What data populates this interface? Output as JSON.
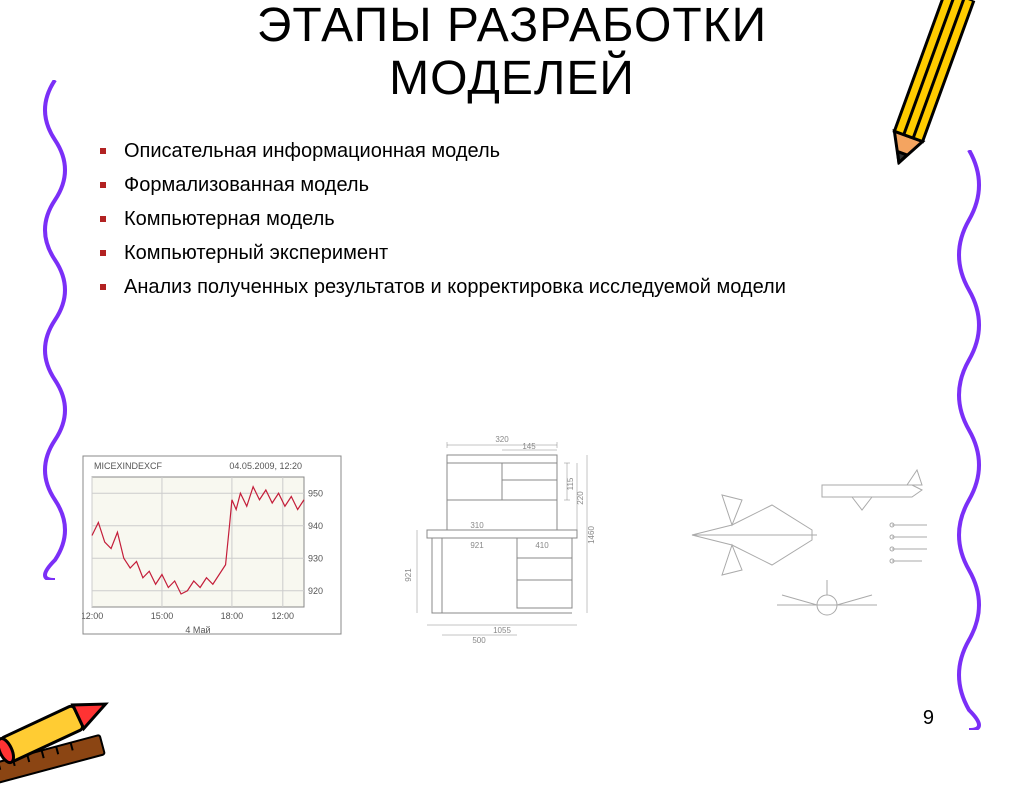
{
  "title_line1": "ЭТАПЫ РАЗРАБОТКИ",
  "title_line2": "МОДЕЛЕЙ",
  "bullets": [
    "Описательная информационная модель",
    "Формализованная модель",
    "Компьютерная модель",
    "Компьютерный эксперимент",
    "Анализ полученных результатов и корректировка исследуемой модели"
  ],
  "page_number": "9",
  "chart": {
    "type": "line",
    "title_left": "MICEXINDEXCF",
    "title_right": "04.05.2009, 12:20",
    "x_labels": [
      "12:00",
      "15:00",
      "18:00",
      "12:00"
    ],
    "x_axis_label": "4 Май",
    "y_ticks": [
      920,
      930,
      940,
      950
    ],
    "ylim": [
      915,
      955
    ],
    "series_color": "#c41e3a",
    "border_color": "#888888",
    "grid_color": "#cccccc",
    "background_color": "#f8f8f0",
    "text_color": "#555555",
    "label_fontsize": 9,
    "points": [
      [
        0,
        937
      ],
      [
        3,
        941
      ],
      [
        6,
        935
      ],
      [
        9,
        933
      ],
      [
        12,
        938
      ],
      [
        15,
        930
      ],
      [
        18,
        927
      ],
      [
        21,
        929
      ],
      [
        24,
        924
      ],
      [
        27,
        926
      ],
      [
        30,
        922
      ],
      [
        33,
        925
      ],
      [
        36,
        921
      ],
      [
        39,
        923
      ],
      [
        42,
        919
      ],
      [
        45,
        920
      ],
      [
        48,
        923
      ],
      [
        51,
        921
      ],
      [
        54,
        924
      ],
      [
        57,
        922
      ],
      [
        60,
        925
      ],
      [
        63,
        928
      ],
      [
        65,
        941
      ],
      [
        66,
        948
      ],
      [
        68,
        945
      ],
      [
        70,
        950
      ],
      [
        73,
        946
      ],
      [
        76,
        952
      ],
      [
        79,
        948
      ],
      [
        82,
        951
      ],
      [
        85,
        947
      ],
      [
        88,
        950
      ],
      [
        91,
        946
      ],
      [
        94,
        949
      ],
      [
        97,
        945
      ],
      [
        100,
        948
      ]
    ]
  },
  "desk_drawing": {
    "type": "technical-drawing",
    "line_color": "#888888",
    "text_color": "#888888",
    "dimension_fontsize": 8,
    "dims": {
      "top_width": "320",
      "top_mid": "145",
      "shelf_h1": "220",
      "shelf_h2": "115",
      "shelf_span": "310",
      "lower_span": "1055",
      "lower_left": "410",
      "desk_h": "921",
      "inner_w": "921",
      "leg_gap": "500",
      "total_h": "1460"
    }
  },
  "plane_drawing": {
    "type": "technical-drawing",
    "line_color": "#aaaaaa",
    "background_color": "#ffffff"
  },
  "decor": {
    "squiggle_color": "#7b2ff7",
    "pencil_body": "#ffcc00",
    "pencil_tip": "#f4a460",
    "pencil_lead": "#333333",
    "pencil_outline": "#000000",
    "crayon_body": "#ff3333",
    "crayon_wrap": "#ffcc33",
    "crayon_outline": "#000000",
    "ruler_color": "#8b4513"
  }
}
